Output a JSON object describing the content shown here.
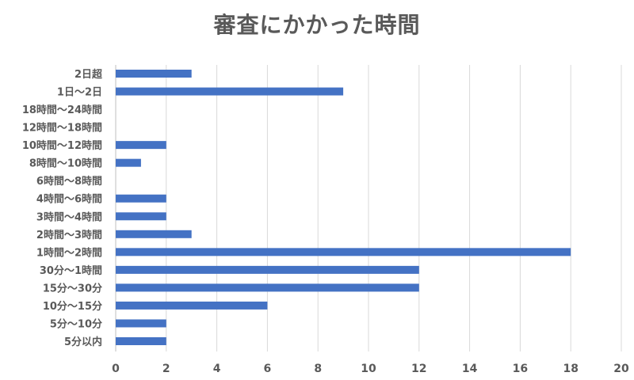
{
  "chart_data": {
    "type": "bar",
    "orientation": "horizontal",
    "title": "審査にかかった時間",
    "xlabel": "",
    "ylabel": "",
    "categories": [
      "2日超",
      "1日～2日",
      "18時間～24時間",
      "12時間～18時間",
      "10時間～12時間",
      "8時間～10時間",
      "6時間～8時間",
      "4時間～6時間",
      "3時間～4時間",
      "2時間～3時間",
      "1時間～2時間",
      "30分～1時間",
      "15分～30分",
      "10分～15分",
      "5分～10分",
      "5分以内"
    ],
    "values": [
      3,
      9,
      0,
      0,
      2,
      1,
      0,
      2,
      2,
      3,
      18,
      12,
      12,
      6,
      2,
      2
    ],
    "xlim": [
      0,
      20
    ],
    "xticks": [
      0,
      2,
      4,
      6,
      8,
      10,
      12,
      14,
      16,
      18,
      20
    ],
    "grid": "vertical",
    "legend": "none",
    "colors": {
      "bar": "#4472c4",
      "grid": "#d9d9d9",
      "text": "#595959",
      "axis": "#bfbfbf"
    }
  }
}
